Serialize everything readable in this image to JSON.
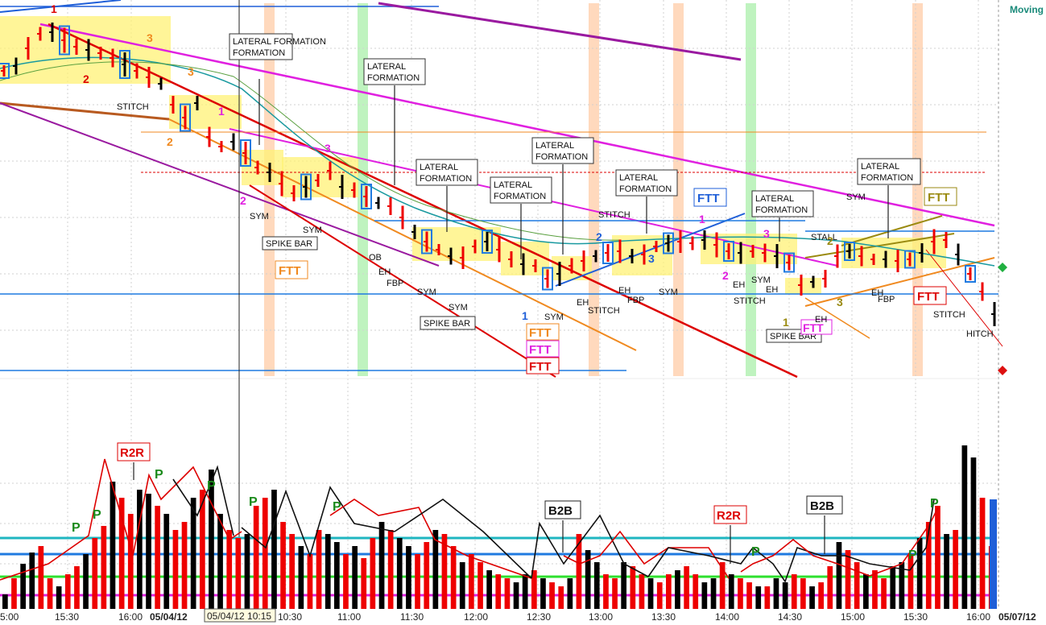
{
  "title_right": "Moving",
  "colors": {
    "up_bar": "#000000",
    "down_bar": "#ee0000",
    "band_green": "#b5f2b5",
    "band_orange": "#ffd2b0",
    "highlight": "#fff27a",
    "blue_line": "#1f7ae0",
    "magenta_line": "#e020e0",
    "purple_line": "#9a1aa0",
    "red_line": "#dd0000",
    "orange_line": "#f08a20",
    "olive": "#9a8a10",
    "teal": "#1a9aa0",
    "green_line": "#2ee02e"
  },
  "chart_data": [
    {
      "type": "line",
      "panel": "price",
      "note_labels": [
        "LATERAL FORMATION",
        "STITCH",
        "SYM",
        "SPIKE BAR",
        "FTT",
        "OB",
        "EH",
        "FBP",
        "STALL",
        "HITCH"
      ],
      "annotations": {
        "lateral": [
          "LATERAL\nFORMATION",
          "LATERAL\nFORMATION",
          "LATERAL\nFORMATION",
          "LATERAL\nFORMATION",
          "LATERAL\nFORMATION",
          "LATERAL\nFORMATION",
          "LATERAL\nFORMATION",
          "LATERAL\nFORMATION"
        ],
        "spike": [
          "SPIKE BAR",
          "SPIKE BAR",
          "SPIKE BAR"
        ],
        "ftt": [
          "FTT",
          "FTT",
          "FTT",
          "FTT",
          "FTT",
          "FTT",
          "FTT",
          "FTT"
        ],
        "small": [
          "STITCH",
          "SYM",
          "SYM",
          "OB",
          "EH",
          "FBP",
          "SYM",
          "SYM",
          "STITCH",
          "EH",
          "FBP",
          "SYM",
          "EH",
          "EH",
          "SYM",
          "STITCH",
          "STITCH",
          "STALL",
          "SYM",
          "EH",
          "FBP",
          "STITCH",
          "HITCH",
          "EH",
          "FBP",
          "STITCH",
          "EH",
          "FBP",
          "SYM"
        ],
        "numbers": [
          "1",
          "2",
          "3",
          "3",
          "2",
          "1",
          "3",
          "2",
          "1",
          "2",
          "3",
          "3",
          "2",
          "1",
          "2",
          "3",
          "1"
        ]
      }
    },
    {
      "type": "bar",
      "panel": "volume",
      "labels": [
        "R2R",
        "R2R",
        "B2B",
        "B2B",
        "P",
        "P",
        "P",
        "P",
        "P",
        "P",
        "P",
        "P",
        "P"
      ],
      "x_ticks": [
        "5:00",
        "15:30",
        "16:00",
        "05/04/12",
        "10:30",
        "11:00",
        "11:30",
        "12:00",
        "12:30",
        "13:00",
        "13:30",
        "14:00",
        "14:30",
        "15:00",
        "15:30",
        "16:00",
        "05/07/12"
      ],
      "cursor_label": "05/04/12 10:15"
    }
  ]
}
